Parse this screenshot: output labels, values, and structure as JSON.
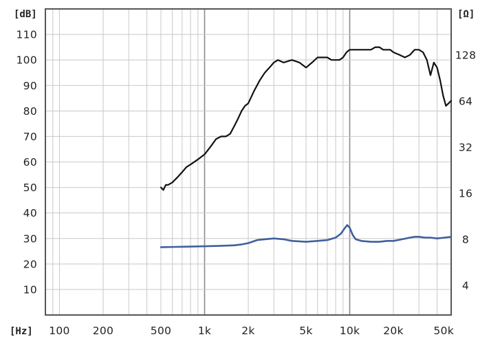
{
  "chart_data": {
    "type": "line",
    "title": "",
    "x_unit_label": "[Hz]",
    "y_left_unit_label": "[dB]",
    "y_right_unit_label": "[Ω]",
    "x_scale": "log",
    "x_range": [
      80,
      50000
    ],
    "x_ticks": [
      {
        "value": 100,
        "label": "100"
      },
      {
        "value": 200,
        "label": "200"
      },
      {
        "value": 500,
        "label": "500"
      },
      {
        "value": 1000,
        "label": "1k"
      },
      {
        "value": 2000,
        "label": "2k"
      },
      {
        "value": 5000,
        "label": "5k"
      },
      {
        "value": 10000,
        "label": "10k"
      },
      {
        "value": 20000,
        "label": "20k"
      },
      {
        "value": 50000,
        "label": "50k"
      }
    ],
    "y_left_range": [
      0,
      120
    ],
    "y_left_ticks": [
      {
        "value": 10,
        "label": "10"
      },
      {
        "value": 20,
        "label": "20"
      },
      {
        "value": 30,
        "label": "30"
      },
      {
        "value": 40,
        "label": "40"
      },
      {
        "value": 50,
        "label": "50"
      },
      {
        "value": 60,
        "label": "60"
      },
      {
        "value": 70,
        "label": "70"
      },
      {
        "value": 80,
        "label": "80"
      },
      {
        "value": 90,
        "label": "90"
      },
      {
        "value": 100,
        "label": "100"
      },
      {
        "value": 110,
        "label": "110"
      }
    ],
    "y_right_scale": "log",
    "y_right_range": [
      2.56,
      256
    ],
    "y_right_ticks": [
      {
        "value": 4,
        "label": "4"
      },
      {
        "value": 8,
        "label": "8"
      },
      {
        "value": 16,
        "label": "16"
      },
      {
        "value": 32,
        "label": "32"
      },
      {
        "value": 64,
        "label": "64"
      },
      {
        "value": 128,
        "label": "128"
      }
    ],
    "grid": true,
    "colors": {
      "spl": "#111111",
      "impedance": "#3f5f9e",
      "grid": "#c8c8c8",
      "major_grid": "#8a8a8a",
      "frame": "#555555"
    },
    "series": [
      {
        "key": "spl",
        "axis": "left",
        "color": "#111111",
        "x": [
          500,
          520,
          540,
          560,
          600,
          650,
          700,
          750,
          800,
          900,
          1000,
          1100,
          1200,
          1300,
          1400,
          1500,
          1600,
          1700,
          1800,
          1900,
          2000,
          2200,
          2400,
          2600,
          2800,
          3000,
          3200,
          3500,
          4000,
          4500,
          5000,
          5500,
          6000,
          6500,
          7000,
          7500,
          8000,
          8500,
          9000,
          9500,
          10000,
          11000,
          12000,
          13000,
          14000,
          15000,
          16000,
          17000,
          18000,
          19000,
          20000,
          22000,
          24000,
          26000,
          28000,
          30000,
          32000,
          34000,
          36000,
          38000,
          40000,
          42000,
          44000,
          46000,
          48000,
          50000
        ],
        "y": [
          50,
          49,
          51,
          51,
          52,
          54,
          56,
          58,
          59,
          61,
          63,
          66,
          69,
          70,
          70,
          71,
          74,
          77,
          80,
          82,
          83,
          88,
          92,
          95,
          97,
          99,
          100,
          99,
          100,
          99,
          97,
          99,
          101,
          101,
          101,
          100,
          100,
          100,
          101,
          103,
          104,
          104,
          104,
          104,
          104,
          105,
          105,
          104,
          104,
          104,
          103,
          102,
          101,
          102,
          104,
          104,
          103,
          100,
          94,
          99,
          97,
          92,
          86,
          82,
          83,
          84
        ]
      },
      {
        "key": "impedance",
        "axis": "right",
        "color": "#3f5f9e",
        "x": [
          500,
          700,
          1000,
          1300,
          1600,
          1800,
          2000,
          2300,
          2600,
          3000,
          3500,
          4000,
          5000,
          6000,
          7000,
          8000,
          8700,
          9200,
          9600,
          10000,
          10500,
          11000,
          12000,
          14000,
          16000,
          18000,
          20000,
          23000,
          26000,
          28000,
          30000,
          33000,
          36000,
          40000,
          45000,
          50000
        ],
        "y": [
          7.1,
          7.15,
          7.2,
          7.25,
          7.3,
          7.4,
          7.55,
          7.9,
          8.0,
          8.1,
          8.0,
          7.8,
          7.7,
          7.8,
          7.9,
          8.2,
          8.7,
          9.4,
          9.9,
          9.5,
          8.5,
          8.0,
          7.8,
          7.7,
          7.7,
          7.8,
          7.8,
          8.0,
          8.2,
          8.3,
          8.3,
          8.2,
          8.2,
          8.1,
          8.2,
          8.3
        ]
      }
    ]
  }
}
